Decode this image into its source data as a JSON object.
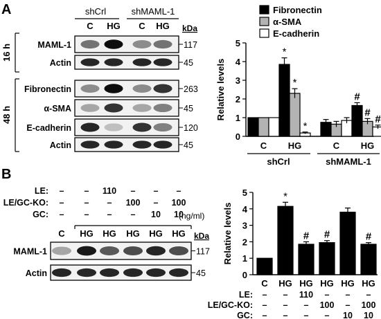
{
  "panel_a": {
    "label": "A",
    "group_labels": [
      "shCrl",
      "shMAML-1"
    ],
    "lane_labels": [
      "C",
      "HG",
      "C",
      "HG"
    ],
    "kda_label": "kDa",
    "time_labels": [
      "16 h",
      "48 h"
    ],
    "blots": [
      {
        "name": "MAML-1",
        "kda": "117",
        "intensity": [
          0.55,
          0.95,
          0.45,
          0.55
        ]
      },
      {
        "name": "Actin",
        "kda": "45",
        "intensity": [
          0.85,
          0.85,
          0.85,
          0.85
        ]
      },
      {
        "name": "Fibronectin",
        "kda": "263",
        "intensity": [
          0.45,
          0.95,
          0.45,
          0.8
        ]
      },
      {
        "name": "α-SMA",
        "kda": "45",
        "intensity": [
          0.35,
          0.8,
          0.35,
          0.5
        ]
      },
      {
        "name": "E-cadherin",
        "kda": "120",
        "intensity": [
          0.85,
          0.25,
          0.8,
          0.5
        ]
      },
      {
        "name": "Actin",
        "kda": "45",
        "intensity": [
          0.85,
          0.85,
          0.85,
          0.85
        ]
      }
    ],
    "legend": [
      "Fibronectin",
      "α-SMA",
      "E-cadherin"
    ],
    "colors": {
      "Fibronectin": "#000000",
      "α-SMA": "#b3b3b3",
      "E-cadherin": "#ffffff"
    }
  },
  "panel_b": {
    "label": "B",
    "treatments": [
      {
        "name": "LE:",
        "values": [
          "–",
          "–",
          "110",
          "–",
          "–",
          "–"
        ]
      },
      {
        "name": "LE/GC-KO:",
        "values": [
          "–",
          "–",
          "–",
          "100",
          "–",
          "100"
        ]
      },
      {
        "name": "GC:",
        "values": [
          "–",
          "–",
          "–",
          "–",
          "10",
          "10"
        ]
      }
    ],
    "units": "(ng/ml)",
    "lane_labels": [
      "C",
      "HG",
      "HG",
      "HG",
      "HG",
      "HG"
    ],
    "kda_label": "kDa",
    "blots": [
      {
        "name": "MAML-1",
        "kda": "117",
        "intensity": [
          0.35,
          0.9,
          0.65,
          0.7,
          0.85,
          0.7
        ]
      },
      {
        "name": "Actin",
        "kda": "45",
        "intensity": [
          0.85,
          0.85,
          0.85,
          0.85,
          0.85,
          0.85
        ]
      }
    ],
    "chart_treatments": [
      {
        "name": "LE:",
        "values": [
          "–",
          "–",
          "110",
          "–",
          "–",
          "–"
        ]
      },
      {
        "name": "LE/GC-KO:",
        "values": [
          "–",
          "–",
          "–",
          "100",
          "–",
          "100"
        ]
      },
      {
        "name": "GC:",
        "values": [
          "–",
          "–",
          "–",
          "–",
          "10",
          "10"
        ]
      }
    ]
  },
  "chart_data": [
    {
      "type": "bar",
      "ylabel": "Relative levels",
      "ylim": [
        0,
        5
      ],
      "yticks": [
        "0",
        "1",
        "2",
        "3",
        "4",
        "5"
      ],
      "categories": [
        "C",
        "HG",
        "C",
        "HG"
      ],
      "groups": [
        "shCrl",
        "shMAML-1"
      ],
      "legend_position": "top-right",
      "series": [
        {
          "name": "Fibronectin",
          "color": "#000000",
          "values": [
            1.0,
            3.85,
            0.75,
            1.65
          ],
          "errors": [
            0,
            0.35,
            0.15,
            0.15
          ],
          "marks": [
            "",
            "*",
            "",
            "#"
          ]
        },
        {
          "name": "α-SMA",
          "color": "#b3b3b3",
          "values": [
            1.0,
            2.3,
            0.65,
            0.8
          ],
          "errors": [
            0,
            0.25,
            0.15,
            0.15
          ],
          "marks": [
            "",
            "*",
            "",
            "#"
          ]
        },
        {
          "name": "E-cadherin",
          "color": "#ffffff",
          "values": [
            1.0,
            0.18,
            0.85,
            0.5
          ],
          "errors": [
            0,
            0.05,
            0.15,
            0.1
          ],
          "marks": [
            "",
            "*",
            "",
            "#"
          ]
        }
      ]
    },
    {
      "type": "bar",
      "ylabel": "Relative levels",
      "ylim": [
        0,
        5
      ],
      "yticks": [
        "0",
        "1",
        "2",
        "3",
        "4",
        "5"
      ],
      "categories": [
        "C",
        "HG",
        "HG",
        "HG",
        "HG",
        "HG"
      ],
      "series": [
        {
          "name": "",
          "color": "#000000",
          "values": [
            1.0,
            4.15,
            1.85,
            1.95,
            3.8,
            1.85
          ],
          "errors": [
            0,
            0.25,
            0.15,
            0.12,
            0.25,
            0.1
          ],
          "marks": [
            "",
            "*",
            "#",
            "#",
            "",
            "#"
          ]
        }
      ]
    }
  ]
}
